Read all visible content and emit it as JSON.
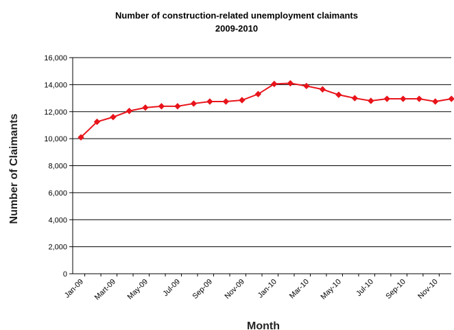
{
  "chart_data": {
    "type": "line",
    "title": "Number of construction-related unemployment claimants",
    "subtitle": "2009-2010",
    "xlabel": "Month",
    "ylabel": "Number of Claimants",
    "categories": [
      "Jan-09",
      "Feb-09",
      "Mar-09",
      "Apr-09",
      "May-09",
      "Jun-09",
      "Jul-09",
      "Aug-09",
      "Sep-09",
      "Oct-09",
      "Nov-09",
      "Dec-09",
      "Jan-10",
      "Feb-10",
      "Mar-10",
      "Apr-10",
      "May-10",
      "Jun-10",
      "Jul-10",
      "Aug-10",
      "Sep-10",
      "Oct-10",
      "Nov-10",
      "Dec-10"
    ],
    "tick_labels": [
      "Jan-09",
      "Mart-09",
      "May-09",
      "Jul-09",
      "Sep-09",
      "Nov-09",
      "Jan-10",
      "Mar-10",
      "May-10",
      "Jul-10",
      "Sep-10",
      "Nov-10"
    ],
    "y_tick_labels": [
      "0",
      "2,000",
      "4,000",
      "6,000",
      "8,000",
      "10,000",
      "12,000",
      "14,000",
      "16,000"
    ],
    "values": [
      10100,
      11250,
      11600,
      12050,
      12300,
      12400,
      12400,
      12600,
      12750,
      12750,
      12850,
      13300,
      14050,
      14100,
      13900,
      13650,
      13250,
      13000,
      12800,
      12950,
      12950,
      12950,
      12750,
      12950
    ],
    "ylim": [
      0,
      16000
    ],
    "grid": true,
    "legend": "none",
    "line_color": "#e8141b",
    "marker": "diamond"
  }
}
